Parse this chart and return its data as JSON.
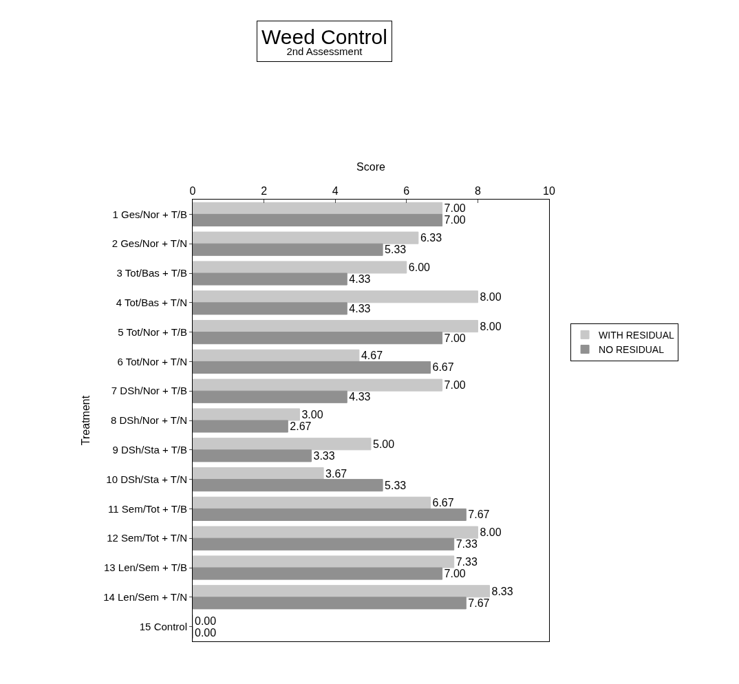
{
  "chart_data": {
    "type": "bar",
    "orientation": "horizontal",
    "title": "Weed Control",
    "subtitle": "2nd Assessment",
    "xlabel": "Score",
    "ylabel": "Treatment",
    "categories": [
      "1 Ges/Nor + T/B",
      "2 Ges/Nor + T/N",
      "3 Tot/Bas + T/B",
      "4 Tot/Bas + T/N",
      "5 Tot/Nor + T/B",
      "6 Tot/Nor + T/N",
      "7 DSh/Nor + T/B",
      "8 DSh/Nor + T/N",
      "9 DSh/Sta + T/B",
      "10 DSh/Sta + T/N",
      "11 Sem/Tot + T/B",
      "12 Sem/Tot + T/N",
      "13 Len/Sem + T/B",
      "14 Len/Sem + T/N",
      "15 Control"
    ],
    "series": [
      {
        "name": "WITH RESIDUAL",
        "color": "#c8c8c8",
        "values": [
          7.0,
          6.33,
          6.0,
          8.0,
          8.0,
          4.67,
          7.0,
          3.0,
          5.0,
          3.67,
          6.67,
          8.0,
          7.33,
          8.33,
          0.0
        ],
        "value_labels": [
          "7.00",
          "6.33",
          "6.00",
          "8.00",
          "8.00",
          "4.67",
          "7.00",
          "3.00",
          "5.00",
          "3.67",
          "6.67",
          "8.00",
          "7.33",
          "8.33",
          "0.00"
        ]
      },
      {
        "name": "NO RESIDUAL",
        "color": "#909090",
        "values": [
          7.0,
          5.33,
          4.33,
          4.33,
          7.0,
          6.67,
          4.33,
          2.67,
          3.33,
          5.33,
          7.67,
          7.33,
          7.0,
          7.67,
          0.0
        ],
        "value_labels": [
          "7.00",
          "5.33",
          "4.33",
          "4.33",
          "7.00",
          "6.67",
          "4.33",
          "2.67",
          "3.33",
          "5.33",
          "7.67",
          "7.33",
          "7.00",
          "7.67",
          "0.00"
        ]
      }
    ],
    "xlim": [
      0,
      10
    ],
    "xticks": [
      0,
      2,
      4,
      6,
      8,
      10
    ],
    "legend": "right"
  }
}
